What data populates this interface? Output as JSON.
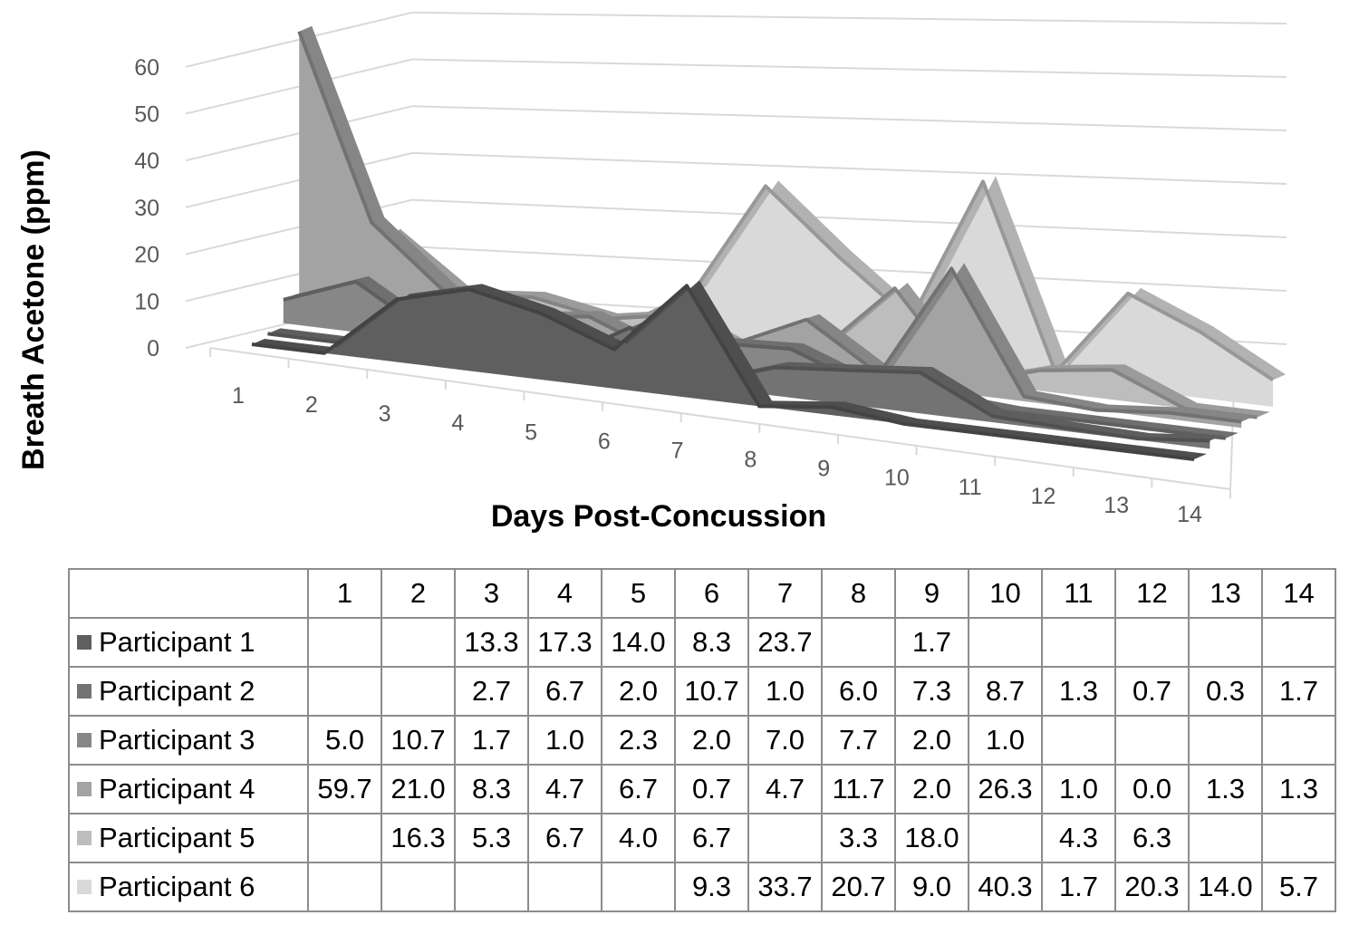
{
  "chart_data": {
    "type": "line",
    "style": "3d",
    "title": "",
    "xlabel": "Days Post-Concussion",
    "ylabel": "Breath Acetone (ppm)",
    "ylim": [
      0,
      60
    ],
    "yticks": [
      "0",
      "10",
      "20",
      "30",
      "40",
      "50",
      "60"
    ],
    "categories": [
      "1",
      "2",
      "3",
      "4",
      "5",
      "6",
      "7",
      "8",
      "9",
      "10",
      "11",
      "12",
      "13",
      "14"
    ],
    "grid": true,
    "legend": "data-table",
    "series": [
      {
        "name": "Participant 1",
        "color": "#5f5f5f",
        "values": [
          null,
          null,
          13.3,
          17.3,
          14.0,
          8.3,
          23.7,
          null,
          1.7,
          null,
          null,
          null,
          null,
          null
        ]
      },
      {
        "name": "Participant 2",
        "color": "#737373",
        "values": [
          null,
          null,
          2.7,
          6.7,
          2.0,
          10.7,
          1.0,
          6.0,
          7.3,
          8.7,
          1.3,
          0.7,
          0.3,
          1.7
        ]
      },
      {
        "name": "Participant 3",
        "color": "#878787",
        "values": [
          5.0,
          10.7,
          1.7,
          1.0,
          2.3,
          2.0,
          7.0,
          7.7,
          2.0,
          1.0,
          null,
          null,
          null,
          null
        ]
      },
      {
        "name": "Participant 4",
        "color": "#a3a3a3",
        "values": [
          59.7,
          21.0,
          8.3,
          4.7,
          6.7,
          0.7,
          4.7,
          11.7,
          2.0,
          26.3,
          1.0,
          0.0,
          1.3,
          1.3
        ]
      },
      {
        "name": "Participant 5",
        "color": "#bdbdbd",
        "values": [
          null,
          16.3,
          5.3,
          6.7,
          4.0,
          6.7,
          null,
          3.3,
          18.0,
          null,
          4.3,
          6.3,
          null,
          null
        ]
      },
      {
        "name": "Participant 6",
        "color": "#d9d9d9",
        "values": [
          null,
          null,
          null,
          null,
          null,
          9.3,
          33.7,
          20.7,
          9.0,
          40.3,
          1.7,
          20.3,
          14.0,
          5.7
        ]
      }
    ]
  }
}
